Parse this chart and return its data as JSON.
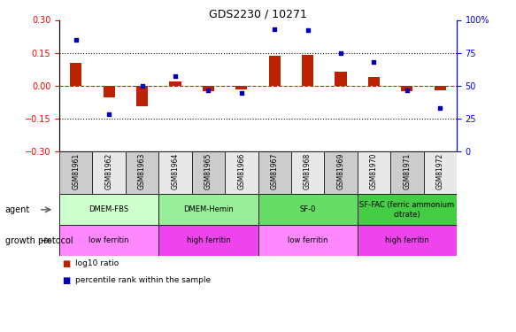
{
  "title": "GDS2230 / 10271",
  "samples": [
    "GSM81961",
    "GSM81962",
    "GSM81963",
    "GSM81964",
    "GSM81965",
    "GSM81966",
    "GSM81967",
    "GSM81968",
    "GSM81969",
    "GSM81970",
    "GSM81971",
    "GSM81972"
  ],
  "log10_ratio": [
    0.105,
    -0.055,
    -0.095,
    0.018,
    -0.028,
    -0.018,
    0.135,
    0.14,
    0.065,
    0.04,
    -0.025,
    -0.022
  ],
  "percentile": [
    85,
    28,
    50,
    57,
    46,
    44,
    93,
    92,
    75,
    68,
    46,
    33
  ],
  "ylim_left": [
    -0.3,
    0.3
  ],
  "ylim_right": [
    0,
    100
  ],
  "yticks_left": [
    -0.3,
    -0.15,
    0,
    0.15,
    0.3
  ],
  "yticks_right": [
    0,
    25,
    50,
    75,
    100
  ],
  "agent_groups": [
    {
      "label": "DMEM-FBS",
      "start": 0,
      "end": 3,
      "color": "#ccffcc"
    },
    {
      "label": "DMEM-Hemin",
      "start": 3,
      "end": 6,
      "color": "#99ee99"
    },
    {
      "label": "SF-0",
      "start": 6,
      "end": 9,
      "color": "#66dd66"
    },
    {
      "label": "SF-FAC (ferric ammonium\ncitrate)",
      "start": 9,
      "end": 12,
      "color": "#44cc44"
    }
  ],
  "growth_groups": [
    {
      "label": "low ferritin",
      "start": 0,
      "end": 3,
      "color": "#ff88ff"
    },
    {
      "label": "high ferritin",
      "start": 3,
      "end": 6,
      "color": "#ee44ee"
    },
    {
      "label": "low ferritin",
      "start": 6,
      "end": 9,
      "color": "#ff88ff"
    },
    {
      "label": "high ferritin",
      "start": 9,
      "end": 12,
      "color": "#ee44ee"
    }
  ],
  "bar_color": "#bb2200",
  "dot_color": "#0000bb",
  "hline_color": "#cc2200",
  "dotted_color": "#111111",
  "tick_bg_even": "#cccccc",
  "tick_bg_odd": "#e8e8e8",
  "background_color": "#ffffff"
}
